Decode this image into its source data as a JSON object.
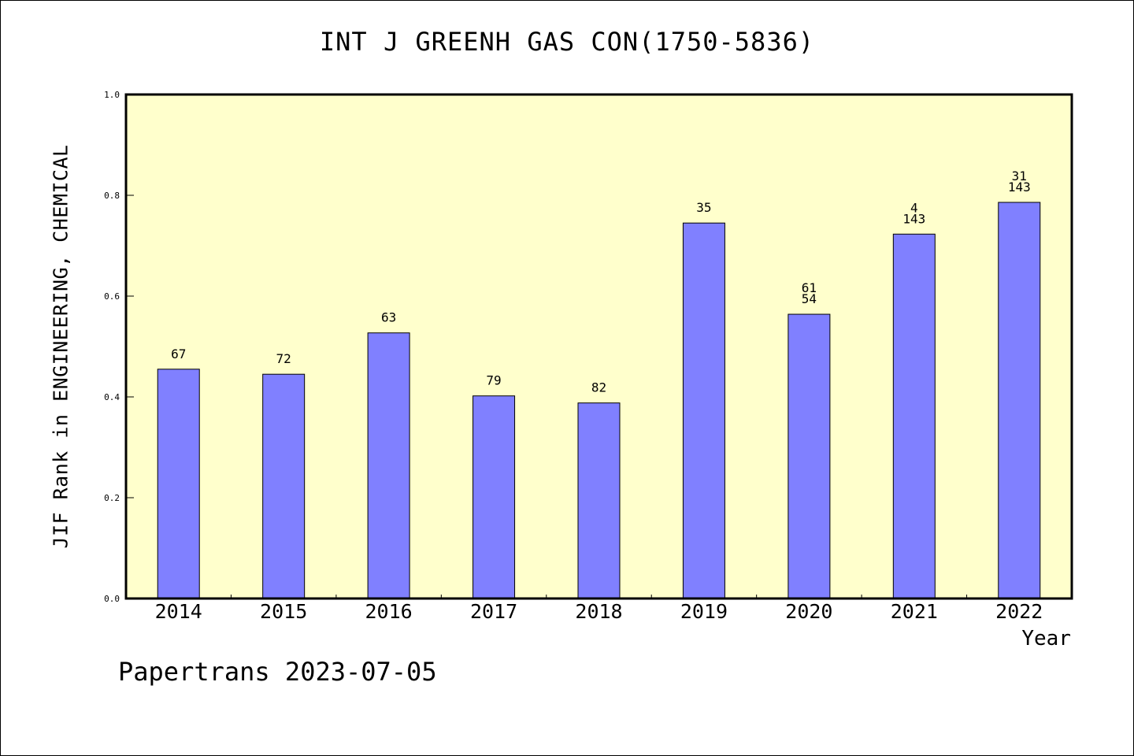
{
  "colors": {
    "plot_background": "#ffffcc",
    "bar_fill": "#8080ff",
    "axis": "#000000"
  },
  "footer": {
    "note": "Papertrans 2023-07-05"
  },
  "chart_data": {
    "type": "bar",
    "title": "INT J GREENH GAS CON(1750-5836)",
    "xlabel": "Year",
    "ylabel": "JIF Rank in ENGINEERING, CHEMICAL",
    "ylim": [
      0,
      1.0
    ],
    "yticks": [
      "0.0",
      "0.2",
      "0.4",
      "0.6",
      "0.8",
      "1.0"
    ],
    "grid": false,
    "categories": [
      "2014",
      "2015",
      "2016",
      "2017",
      "2018",
      "2019",
      "2020",
      "2021",
      "2022"
    ],
    "values": [
      0.455,
      0.445,
      0.527,
      0.402,
      0.388,
      0.745,
      0.564,
      0.723,
      0.786
    ],
    "bar_labels": [
      [
        "67"
      ],
      [
        "72"
      ],
      [
        "63"
      ],
      [
        "79"
      ],
      [
        "82"
      ],
      [
        "35"
      ],
      [
        "61",
        "54"
      ],
      [
        "4",
        "143"
      ],
      [
        "31",
        "143"
      ]
    ]
  }
}
